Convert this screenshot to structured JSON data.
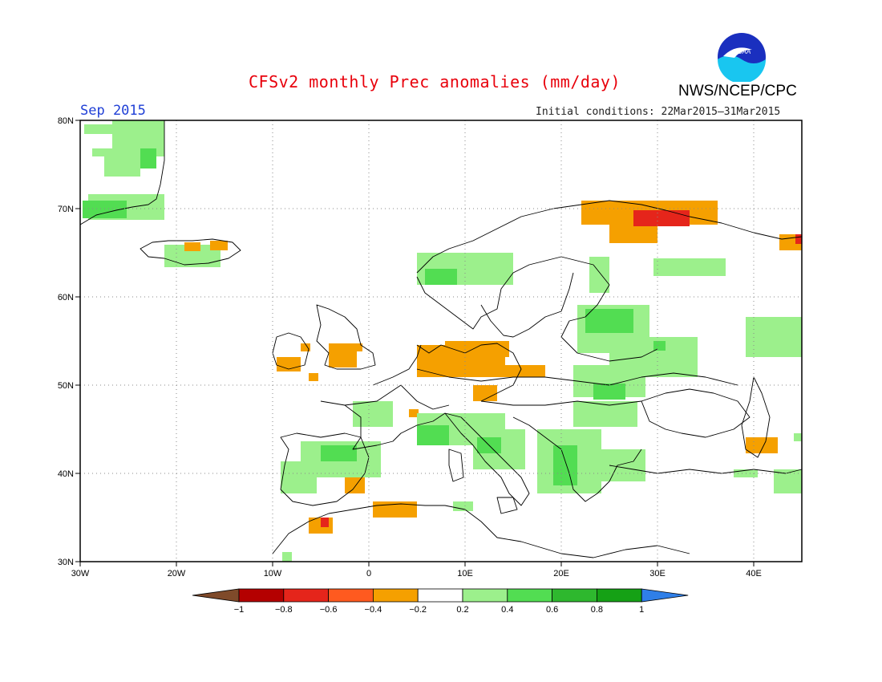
{
  "title": "CFSv2 monthly Prec anomalies (mm/day)",
  "agency": "NWS/NCEP/CPC",
  "logo_text": "NOAA",
  "month": "Sep 2015",
  "initial_conditions": "Initial conditions: 22Mar2015–31Mar2015",
  "lat_labels": [
    "80N",
    "70N",
    "60N",
    "50N",
    "40N",
    "30N"
  ],
  "lon_labels": [
    "30W",
    "20W",
    "10W",
    "0",
    "10E",
    "20E",
    "30E",
    "40E"
  ],
  "colorbar": {
    "ticks": [
      "−1",
      "−0.8",
      "−0.6",
      "−0.4",
      "−0.2",
      "0.2",
      "0.4",
      "0.6",
      "0.8",
      "1"
    ],
    "colors": [
      "#7f4a2a",
      "#b40000",
      "#e5251b",
      "#ff5a1f",
      "#f5a000",
      "#ffffff",
      "#9cf08c",
      "#52dd52",
      "#2eb82e",
      "#15a115",
      "#2f7fe8"
    ]
  },
  "colors": {
    "dry_light": "#f5a000",
    "dry_strong": "#e5251b",
    "wet_light": "#9cf08c",
    "wet_medium": "#52dd52",
    "wet_strong": "#2eb82e",
    "grid": "#8a8a8a",
    "coast": "#000000"
  }
}
